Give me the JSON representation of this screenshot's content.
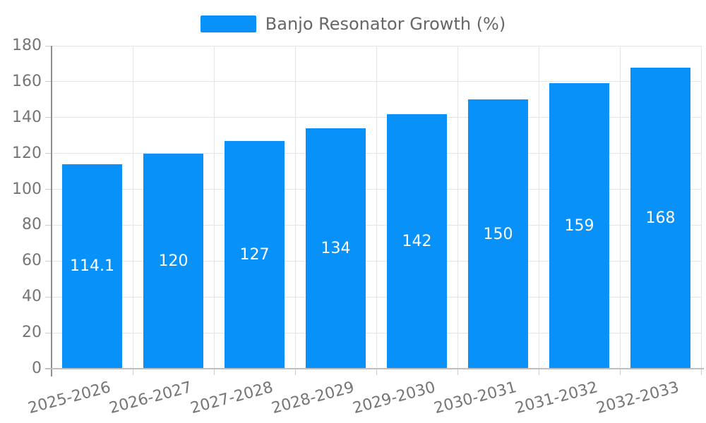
{
  "legend": {
    "label": "Banjo Resonator Growth (%)"
  },
  "colors": {
    "bar": "#0991fa",
    "grid": "#e4e4e4",
    "tick": "#cccccc",
    "axis_y": "#8e8e8e",
    "axis_x": "#bfbfbf",
    "tick_text": "#757575",
    "legend_text": "#666666",
    "value_text": "#ffffff"
  },
  "chart_data": {
    "type": "bar",
    "title": "Banjo Resonator Growth (%)",
    "categories": [
      "2025-2026",
      "2026-2027",
      "2027-2028",
      "2028-2029",
      "2029-2030",
      "2030-2031",
      "2031-2032",
      "2032-2033"
    ],
    "values": [
      114.1,
      120,
      127,
      134,
      142,
      150,
      159,
      168
    ],
    "value_labels": [
      "114.1",
      "120",
      "127",
      "134",
      "142",
      "150",
      "159",
      "168"
    ],
    "series": [
      {
        "name": "Banjo Resonator Growth (%)",
        "values": [
          114.1,
          120,
          127,
          134,
          142,
          150,
          159,
          168
        ]
      }
    ],
    "xlabel": "",
    "ylabel": "",
    "ylim": [
      0,
      180
    ],
    "yticks": [
      0,
      20,
      40,
      60,
      80,
      100,
      120,
      140,
      160,
      180
    ],
    "grid": true,
    "legend_position": "top",
    "x_tick_rotation_deg": -15
  }
}
